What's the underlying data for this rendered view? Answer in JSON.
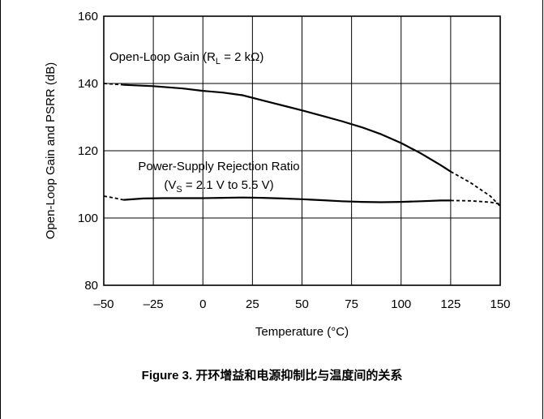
{
  "chart_data": {
    "type": "line",
    "xlabel": "Temperature (°C)",
    "ylabel": "Open-Loop Gain and PSRR (dB)",
    "xlim": [
      -50,
      150
    ],
    "ylim": [
      80,
      160
    ],
    "x_ticks": [
      -50,
      -25,
      0,
      25,
      50,
      75,
      100,
      125,
      150
    ],
    "x_tick_labels": [
      "–50",
      "–25",
      "0",
      "25",
      "50",
      "75",
      "100",
      "125",
      "150"
    ],
    "y_ticks": [
      80,
      100,
      120,
      140,
      160
    ],
    "y_tick_labels": [
      "80",
      "100",
      "120",
      "140",
      "160"
    ],
    "grid": true,
    "series": [
      {
        "name": "Open-Loop Gain (RL = 2 kΩ)",
        "solid": [
          [
            -40,
            139.6
          ],
          [
            -25,
            139.2
          ],
          [
            -10,
            138.5
          ],
          [
            0,
            137.8
          ],
          [
            10,
            137.3
          ],
          [
            20,
            136.5
          ],
          [
            30,
            135.0
          ],
          [
            40,
            133.5
          ],
          [
            50,
            132.0
          ],
          [
            60,
            130.4
          ],
          [
            70,
            128.8
          ],
          [
            80,
            127.0
          ],
          [
            90,
            124.9
          ],
          [
            100,
            122.3
          ],
          [
            110,
            119.2
          ],
          [
            120,
            115.7
          ],
          [
            125,
            113.8
          ]
        ],
        "dashed_left": [
          [
            -50,
            140.0
          ],
          [
            -40,
            139.6
          ]
        ],
        "dashed_right": [
          [
            125,
            113.8
          ],
          [
            135,
            110.5
          ],
          [
            145,
            106.5
          ],
          [
            150,
            103.5
          ]
        ]
      },
      {
        "name": "Power-Supply Rejection Ratio (VS = 2.1 V to 5.5 V)",
        "solid": [
          [
            -40,
            105.4
          ],
          [
            -30,
            105.8
          ],
          [
            -20,
            105.9
          ],
          [
            -10,
            105.9
          ],
          [
            0,
            105.9
          ],
          [
            10,
            106.0
          ],
          [
            20,
            106.1
          ],
          [
            30,
            106.0
          ],
          [
            40,
            105.8
          ],
          [
            50,
            105.6
          ],
          [
            60,
            105.3
          ],
          [
            70,
            105.0
          ],
          [
            80,
            104.8
          ],
          [
            90,
            104.7
          ],
          [
            100,
            104.8
          ],
          [
            110,
            105.0
          ],
          [
            120,
            105.2
          ],
          [
            125,
            105.2
          ]
        ],
        "dashed_left": [
          [
            -50,
            106.5
          ],
          [
            -45,
            106.0
          ],
          [
            -40,
            105.4
          ]
        ],
        "dashed_right": [
          [
            125,
            105.2
          ],
          [
            135,
            105.1
          ],
          [
            145,
            104.7
          ],
          [
            150,
            104.2
          ]
        ]
      }
    ],
    "annotations": {
      "gain_label": {
        "main": "Open-Loop Gain (R",
        "sub": "L",
        "tail": " = 2 kΩ)"
      },
      "psrr_line1": "Power-Supply Rejection Ratio",
      "psrr_line2": {
        "main": "(V",
        "sub": "S",
        "tail": " = 2.1 V to 5.5 V)"
      }
    }
  },
  "caption": "Figure 3. 开环增益和电源抑制比与温度间的关系"
}
